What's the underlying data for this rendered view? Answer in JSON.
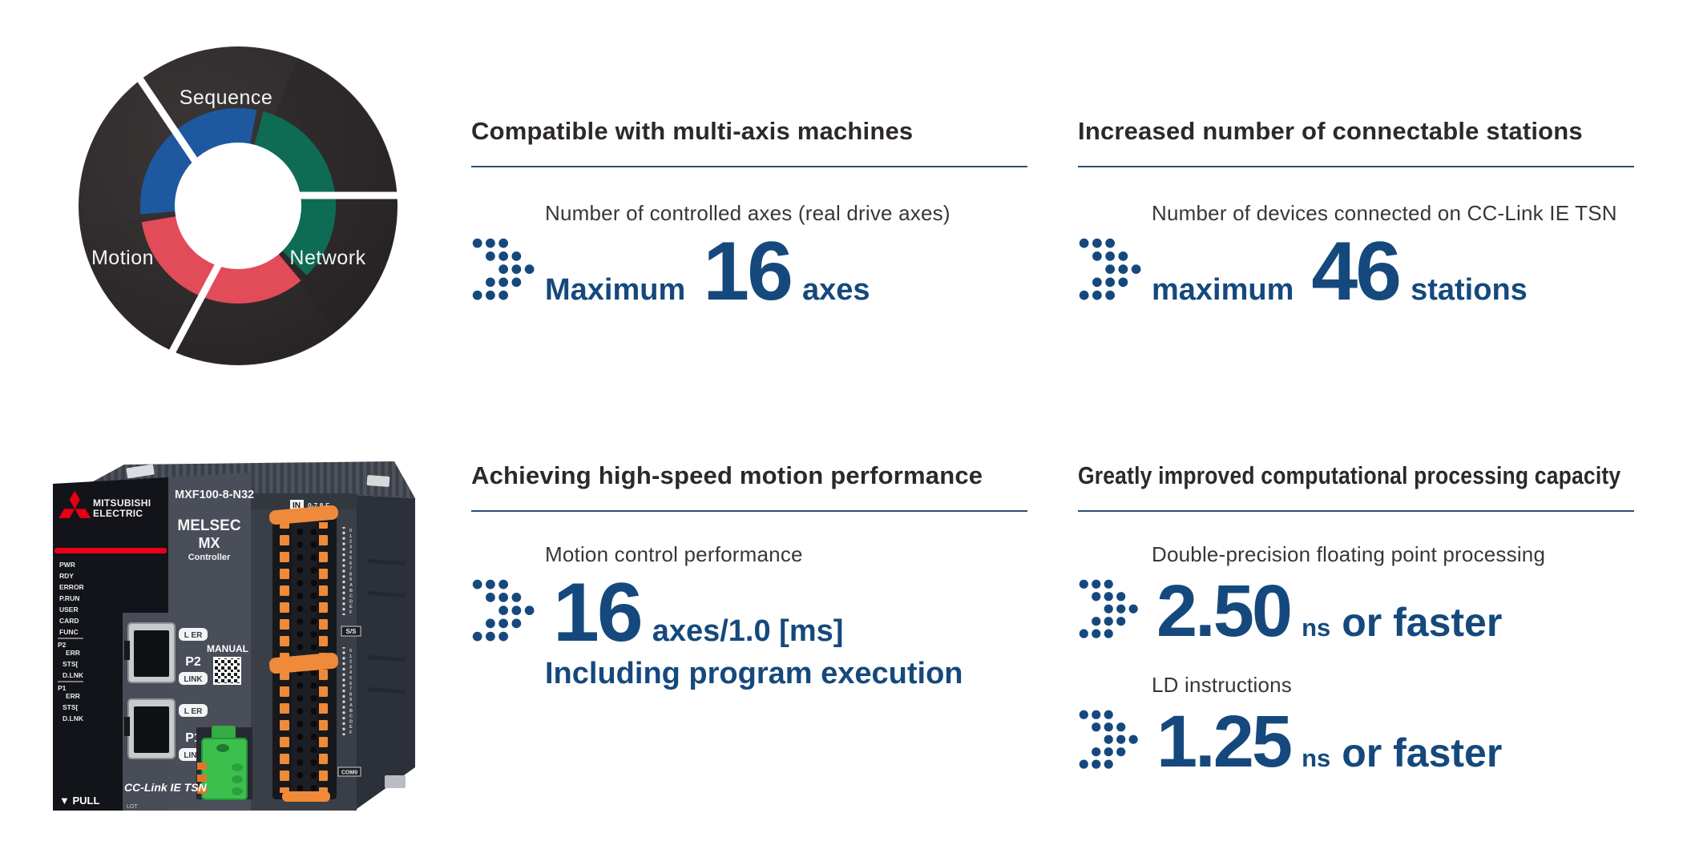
{
  "palette": {
    "navy": "#15497D",
    "heading": "#2D282A",
    "sublabel": "#3B3537",
    "rule_line": "#2B4D72",
    "mitsubishi_red": "#E60012",
    "diagram_blue": "#1E59A0",
    "diagram_green": "#0E6B54",
    "diagram_red": "#E24B58",
    "connector_orange": "#EE8A3A",
    "connector_green": "#3DBF4E"
  },
  "diagram": {
    "segments": [
      {
        "label": "Sequence"
      },
      {
        "label": "Motion"
      },
      {
        "label": "Network"
      }
    ]
  },
  "device": {
    "brand_line1": "MITSUBISHI",
    "brand_line2": "ELECTRIC",
    "model": "MXF100-8-N32",
    "series1": "MELSEC",
    "series2": "MX",
    "series3": "Controller",
    "leds": [
      "PWR",
      "RDY",
      "ERROR",
      "P.RUN",
      "USER",
      "CARD",
      "FUNC",
      "P2",
      "ERR",
      "STS[",
      "D.LNK",
      "P1",
      "ERR",
      "STS[",
      "D.LNK"
    ],
    "port2": {
      "lamp": "L ER",
      "name": "P2",
      "link": "LINK"
    },
    "port1": {
      "lamp": "L ER",
      "name": "P1",
      "link": "LINK"
    },
    "manual": "MANUAL",
    "network_logo": "CC-Link IE TSN",
    "pull": "▼ PULL",
    "lot": "LOT",
    "in_badge": "IN",
    "in_range": "0-7  8-F",
    "ss": "S/S",
    "com": "COM0",
    "hex": "0123456789ABCDEF"
  },
  "features": [
    {
      "title": "Compatible with multi-axis machines",
      "label": "Number of controlled axes (real drive axes)",
      "prefix": "Maximum",
      "value": "16",
      "suffix": "axes"
    },
    {
      "title": "Increased number of connectable stations",
      "label": "Number of devices connected on CC-Link IE TSN",
      "prefix": "maximum",
      "value": "46",
      "suffix": "stations"
    },
    {
      "title": "Achieving high-speed motion performance",
      "label": "Motion control performance",
      "value": "16",
      "suffix": "axes/1.0 [ms]",
      "note": "Including program execution"
    },
    {
      "title": "Greatly improved computational processing capacity",
      "rows": [
        {
          "label": "Double-precision floating point processing",
          "value": "2.50",
          "unit": "ns",
          "suffix": "or faster"
        },
        {
          "label": "LD instructions",
          "value": "1.25",
          "unit": "ns",
          "suffix": "or faster"
        }
      ]
    }
  ]
}
